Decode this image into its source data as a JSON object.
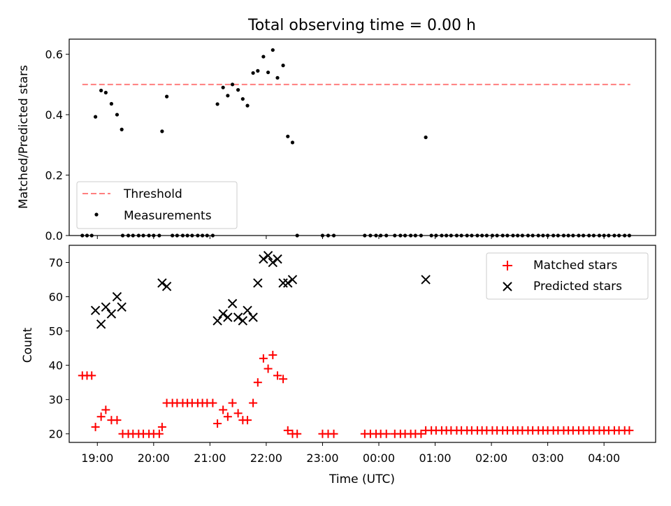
{
  "title": "Total observing time = 0.00 h",
  "chart_data": [
    {
      "type": "scatter",
      "panel": "top",
      "ylabel": "Matched/Predicted stars",
      "xlabel": "",
      "ylim": [
        0,
        0.65
      ],
      "yticks": [
        0.0,
        0.2,
        0.4,
        0.6
      ],
      "ytick_labels": [
        "0.0",
        "0.2",
        "0.4",
        "0.6"
      ],
      "xlim": [
        "18:30",
        "04:55"
      ],
      "x_ticks": [
        "19:00",
        "20:00",
        "21:00",
        "22:00",
        "23:00",
        "00:00",
        "01:00",
        "02:00",
        "03:00",
        "04:00"
      ],
      "threshold": {
        "name": "Threshold",
        "value": 0.5,
        "color": "#ff7f7f",
        "x": [
          "18:44",
          "04:28"
        ]
      },
      "series": [
        {
          "name": "Measurements",
          "color": "#000000",
          "points": [
            [
              "18:44",
              0
            ],
            [
              "18:49",
              0
            ],
            [
              "18:54",
              0
            ],
            [
              "18:58",
              0.393
            ],
            [
              "19:04",
              0.48
            ],
            [
              "19:09",
              0.473
            ],
            [
              "19:15",
              0.436
            ],
            [
              "19:21",
              0.4
            ],
            [
              "19:26",
              0.351
            ],
            [
              "19:27",
              0
            ],
            [
              "19:33",
              0
            ],
            [
              "19:38",
              0
            ],
            [
              "19:44",
              0
            ],
            [
              "19:49",
              0
            ],
            [
              "19:55",
              0
            ],
            [
              "20:00",
              0
            ],
            [
              "20:06",
              0
            ],
            [
              "20:09",
              0.345
            ],
            [
              "20:14",
              0.46
            ],
            [
              "20:20",
              0
            ],
            [
              "20:25",
              0
            ],
            [
              "20:31",
              0
            ],
            [
              "20:36",
              0
            ],
            [
              "20:41",
              0
            ],
            [
              "20:47",
              0
            ],
            [
              "20:52",
              0
            ],
            [
              "20:57",
              0
            ],
            [
              "21:03",
              0
            ],
            [
              "21:08",
              0.435
            ],
            [
              "21:14",
              0.49
            ],
            [
              "21:19",
              0.463
            ],
            [
              "21:24",
              0.5
            ],
            [
              "21:30",
              0.482
            ],
            [
              "21:35",
              0.452
            ],
            [
              "21:40",
              0.43
            ],
            [
              "21:46",
              0.538
            ],
            [
              "21:51",
              0.545
            ],
            [
              "21:57",
              0.592
            ],
            [
              "22:02",
              0.54
            ],
            [
              "22:07",
              0.614
            ],
            [
              "22:12",
              0.522
            ],
            [
              "22:18",
              0.563
            ],
            [
              "22:23",
              0.328
            ],
            [
              "22:28",
              0.308
            ],
            [
              "22:33",
              0
            ],
            [
              "23:00",
              0
            ],
            [
              "23:06",
              0
            ],
            [
              "23:12",
              0
            ],
            [
              "23:45",
              0
            ],
            [
              "23:51",
              0
            ],
            [
              "23:57",
              0
            ],
            [
              "00:02",
              0
            ],
            [
              "00:08",
              0
            ],
            [
              "00:17",
              0
            ],
            [
              "00:23",
              0
            ],
            [
              "00:28",
              0
            ],
            [
              "00:34",
              0
            ],
            [
              "00:39",
              0
            ],
            [
              "00:45",
              0
            ],
            [
              "00:50",
              0.325
            ],
            [
              "00:56",
              0
            ],
            [
              "01:01",
              0
            ],
            [
              "01:07",
              0
            ],
            [
              "01:12",
              0
            ],
            [
              "01:17",
              0
            ],
            [
              "01:23",
              0
            ],
            [
              "01:28",
              0
            ],
            [
              "01:34",
              0
            ],
            [
              "01:39",
              0
            ],
            [
              "01:45",
              0
            ],
            [
              "01:50",
              0
            ],
            [
              "01:55",
              0
            ],
            [
              "02:01",
              0
            ],
            [
              "02:06",
              0
            ],
            [
              "02:12",
              0
            ],
            [
              "02:17",
              0
            ],
            [
              "02:23",
              0
            ],
            [
              "02:28",
              0
            ],
            [
              "02:33",
              0
            ],
            [
              "02:39",
              0
            ],
            [
              "02:44",
              0
            ],
            [
              "02:50",
              0
            ],
            [
              "02:55",
              0
            ],
            [
              "03:00",
              0
            ],
            [
              "03:06",
              0
            ],
            [
              "03:11",
              0
            ],
            [
              "03:17",
              0
            ],
            [
              "03:22",
              0
            ],
            [
              "03:27",
              0
            ],
            [
              "03:33",
              0
            ],
            [
              "03:38",
              0
            ],
            [
              "03:44",
              0
            ],
            [
              "03:49",
              0
            ],
            [
              "03:55",
              0
            ],
            [
              "04:00",
              0
            ],
            [
              "04:05",
              0
            ],
            [
              "04:11",
              0
            ],
            [
              "04:16",
              0
            ],
            [
              "04:22",
              0
            ],
            [
              "04:27",
              0
            ]
          ]
        }
      ],
      "legend": {
        "location": "lower left",
        "entries": [
          "Threshold",
          "Measurements"
        ]
      }
    },
    {
      "type": "scatter",
      "panel": "bottom",
      "ylabel": "Count",
      "xlabel": "Time (UTC)",
      "ylim": [
        17.5,
        75
      ],
      "yticks": [
        20,
        30,
        40,
        50,
        60,
        70
      ],
      "ytick_labels": [
        "20",
        "30",
        "40",
        "50",
        "60",
        "70"
      ],
      "xlim": [
        "18:30",
        "04:55"
      ],
      "x_ticks": [
        "19:00",
        "20:00",
        "21:00",
        "22:00",
        "23:00",
        "00:00",
        "01:00",
        "02:00",
        "03:00",
        "04:00"
      ],
      "x_tick_labels": [
        "19:00",
        "20:00",
        "21:00",
        "22:00",
        "23:00",
        "00:00",
        "01:00",
        "02:00",
        "03:00",
        "04:00"
      ],
      "series": [
        {
          "name": "Matched stars",
          "marker": "plus",
          "color": "#ff0000",
          "points": [
            [
              "18:44",
              37
            ],
            [
              "18:49",
              37
            ],
            [
              "18:54",
              37
            ],
            [
              "18:58",
              22
            ],
            [
              "19:04",
              25
            ],
            [
              "19:09",
              27
            ],
            [
              "19:15",
              24
            ],
            [
              "19:21",
              24
            ],
            [
              "19:27",
              20
            ],
            [
              "19:33",
              20
            ],
            [
              "19:38",
              20
            ],
            [
              "19:44",
              20
            ],
            [
              "19:49",
              20
            ],
            [
              "19:55",
              20
            ],
            [
              "20:00",
              20
            ],
            [
              "20:06",
              20
            ],
            [
              "20:09",
              22
            ],
            [
              "20:14",
              29
            ],
            [
              "20:20",
              29
            ],
            [
              "20:25",
              29
            ],
            [
              "20:31",
              29
            ],
            [
              "20:36",
              29
            ],
            [
              "20:41",
              29
            ],
            [
              "20:47",
              29
            ],
            [
              "20:52",
              29
            ],
            [
              "20:57",
              29
            ],
            [
              "21:03",
              29
            ],
            [
              "21:08",
              23
            ],
            [
              "21:14",
              27
            ],
            [
              "21:19",
              25
            ],
            [
              "21:24",
              29
            ],
            [
              "21:30",
              26
            ],
            [
              "21:35",
              24
            ],
            [
              "21:40",
              24
            ],
            [
              "21:46",
              29
            ],
            [
              "21:51",
              35
            ],
            [
              "21:57",
              42
            ],
            [
              "22:02",
              39
            ],
            [
              "22:07",
              43
            ],
            [
              "22:12",
              37
            ],
            [
              "22:18",
              36
            ],
            [
              "22:23",
              21
            ],
            [
              "22:28",
              20
            ],
            [
              "22:33",
              20
            ],
            [
              "23:00",
              20
            ],
            [
              "23:06",
              20
            ],
            [
              "23:12",
              20
            ],
            [
              "23:45",
              20
            ],
            [
              "23:51",
              20
            ],
            [
              "23:57",
              20
            ],
            [
              "00:02",
              20
            ],
            [
              "00:08",
              20
            ],
            [
              "00:17",
              20
            ],
            [
              "00:23",
              20
            ],
            [
              "00:28",
              20
            ],
            [
              "00:34",
              20
            ],
            [
              "00:39",
              20
            ],
            [
              "00:45",
              20
            ],
            [
              "00:50",
              21
            ],
            [
              "00:56",
              21
            ],
            [
              "01:01",
              21
            ],
            [
              "01:07",
              21
            ],
            [
              "01:12",
              21
            ],
            [
              "01:17",
              21
            ],
            [
              "01:23",
              21
            ],
            [
              "01:28",
              21
            ],
            [
              "01:34",
              21
            ],
            [
              "01:39",
              21
            ],
            [
              "01:45",
              21
            ],
            [
              "01:50",
              21
            ],
            [
              "01:55",
              21
            ],
            [
              "02:01",
              21
            ],
            [
              "02:06",
              21
            ],
            [
              "02:12",
              21
            ],
            [
              "02:17",
              21
            ],
            [
              "02:23",
              21
            ],
            [
              "02:28",
              21
            ],
            [
              "02:33",
              21
            ],
            [
              "02:39",
              21
            ],
            [
              "02:44",
              21
            ],
            [
              "02:50",
              21
            ],
            [
              "02:55",
              21
            ],
            [
              "03:00",
              21
            ],
            [
              "03:06",
              21
            ],
            [
              "03:11",
              21
            ],
            [
              "03:17",
              21
            ],
            [
              "03:22",
              21
            ],
            [
              "03:27",
              21
            ],
            [
              "03:33",
              21
            ],
            [
              "03:38",
              21
            ],
            [
              "03:44",
              21
            ],
            [
              "03:49",
              21
            ],
            [
              "03:55",
              21
            ],
            [
              "04:00",
              21
            ],
            [
              "04:05",
              21
            ],
            [
              "04:11",
              21
            ],
            [
              "04:16",
              21
            ],
            [
              "04:22",
              21
            ],
            [
              "04:27",
              21
            ]
          ]
        },
        {
          "name": "Predicted stars",
          "marker": "x",
          "color": "#000000",
          "points": [
            [
              "18:58",
              56
            ],
            [
              "19:04",
              52
            ],
            [
              "19:09",
              57
            ],
            [
              "19:15",
              55
            ],
            [
              "19:21",
              60
            ],
            [
              "19:26",
              57
            ],
            [
              "20:09",
              64
            ],
            [
              "20:14",
              63
            ],
            [
              "21:08",
              53
            ],
            [
              "21:14",
              55
            ],
            [
              "21:19",
              54
            ],
            [
              "21:24",
              58
            ],
            [
              "21:30",
              54
            ],
            [
              "21:35",
              53
            ],
            [
              "21:40",
              56
            ],
            [
              "21:46",
              54
            ],
            [
              "21:51",
              64
            ],
            [
              "21:57",
              71
            ],
            [
              "22:02",
              72
            ],
            [
              "22:07",
              70
            ],
            [
              "22:12",
              71
            ],
            [
              "22:18",
              64
            ],
            [
              "22:23",
              64
            ],
            [
              "22:28",
              65
            ],
            [
              "00:50",
              65
            ]
          ]
        }
      ],
      "legend": {
        "location": "upper right",
        "entries": [
          "Matched stars",
          "Predicted stars"
        ]
      }
    }
  ]
}
